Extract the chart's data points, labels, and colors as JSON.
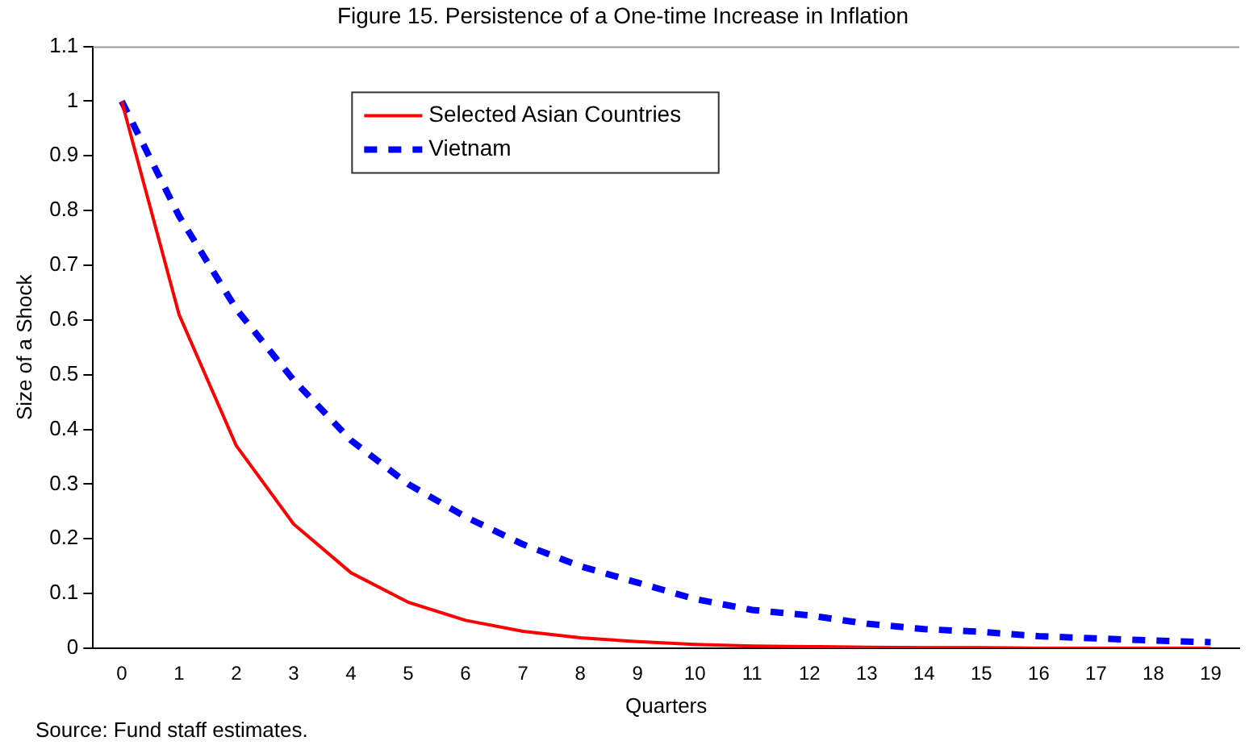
{
  "chart_data": {
    "type": "line",
    "title": "Figure 15. Persistence of a One-time Increase in Inflation",
    "xlabel": "Quarters",
    "ylabel": "Size of a Shock",
    "annotations": [
      "Source: Fund staff estimates."
    ],
    "categories": [
      "0",
      "1",
      "2",
      "3",
      "4",
      "5",
      "6",
      "7",
      "8",
      "9",
      "10",
      "11",
      "12",
      "13",
      "14",
      "15",
      "16",
      "17",
      "18",
      "19"
    ],
    "series": [
      {
        "name": "Selected Asian Countries",
        "color": "#ff0000",
        "line_style": "solid",
        "values": [
          1,
          0.61,
          0.37,
          0.227,
          0.138,
          0.084,
          0.051,
          0.031,
          0.019,
          0.012,
          0.007,
          0.004,
          0.003,
          0.002,
          0.001,
          0.001,
          0,
          0,
          0,
          0
        ]
      },
      {
        "name": "Vietnam",
        "color": "#0000ff",
        "line_style": "dashed",
        "values": [
          1,
          0.79,
          0.62,
          0.49,
          0.38,
          0.3,
          0.24,
          0.19,
          0.15,
          0.12,
          0.09,
          0.07,
          0.06,
          0.045,
          0.035,
          0.03,
          0.022,
          0.018,
          0.014,
          0.011
        ]
      }
    ],
    "ylim": [
      0,
      1.1
    ],
    "yticks": [
      0,
      0.1,
      0.2,
      0.3,
      0.4,
      0.5,
      0.6,
      0.7,
      0.8,
      0.9,
      1,
      1.1
    ],
    "grid": false,
    "legend": "top left",
    "marker": "none"
  }
}
